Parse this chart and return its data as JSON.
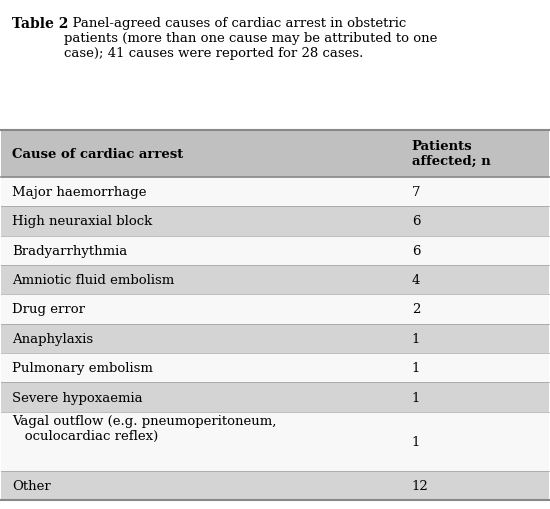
{
  "title_bold": "Table 2",
  "title_text": "  Panel-agreed causes of cardiac arrest in obstetric\npatients (more than one cause may be attributed to one\ncase); 41 causes were reported for 28 cases.",
  "header_col1": "Cause of cardiac arrest",
  "header_col2": "Patients\naffected; n",
  "rows": [
    [
      "Major haemorrhage",
      "7",
      false
    ],
    [
      "High neuraxial block",
      "6",
      true
    ],
    [
      "Bradyarrhythmia",
      "6",
      false
    ],
    [
      "Amniotic fluid embolism",
      "4",
      true
    ],
    [
      "Drug error",
      "2",
      false
    ],
    [
      "Anaphylaxis",
      "1",
      true
    ],
    [
      "Pulmonary embolism",
      "1",
      false
    ],
    [
      "Severe hypoxaemia",
      "1",
      true
    ],
    [
      "Vagal outflow (e.g. pneumoperitoneum,\n   oculocardiac reflex)",
      "1",
      false
    ],
    [
      "Other",
      "12",
      true
    ]
  ],
  "bg_color": "#ffffff",
  "header_bg": "#c0c0c0",
  "stripe_color": "#d4d4d4",
  "white_color": "#f8f8f8",
  "border_color": "#888888",
  "text_color": "#000000",
  "font_size": 9.5,
  "header_font_size": 9.5
}
